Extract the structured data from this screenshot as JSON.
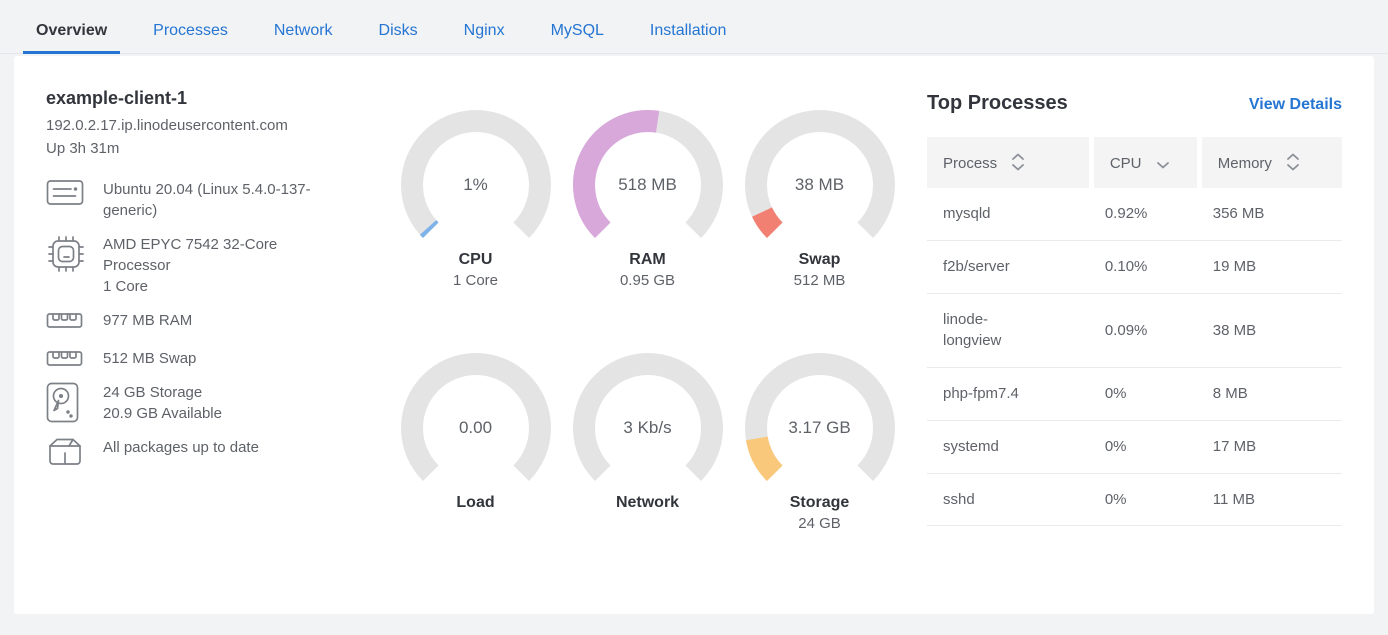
{
  "tabs": {
    "items": [
      {
        "label": "Overview",
        "active": true
      },
      {
        "label": "Processes",
        "active": false
      },
      {
        "label": "Network",
        "active": false
      },
      {
        "label": "Disks",
        "active": false
      },
      {
        "label": "Nginx",
        "active": false
      },
      {
        "label": "MySQL",
        "active": false
      },
      {
        "label": "Installation",
        "active": false
      }
    ]
  },
  "theme": {
    "link_blue": "#2575d2",
    "heading_dark": "#32363c",
    "body_gray": "#5e6268",
    "gauge_track": "#e4e4e4"
  },
  "client": {
    "name": "example-client-1",
    "hostname": "192.0.2.17.ip.linodeusercontent.com",
    "uptime": "Up 3h 31m",
    "specs": {
      "os": {
        "icon": "distro-icon",
        "text": "Ubuntu 20.04 (Linux 5.4.0-137-generic)"
      },
      "cpu": {
        "icon": "cpu-chip-icon",
        "model": "AMD EPYC 7542 32-Core Processor",
        "cores": "1 Core"
      },
      "ram": {
        "icon": "ram-stick-icon",
        "text": "977 MB RAM"
      },
      "swap": {
        "icon": "ram-stick-icon",
        "text": "512 MB Swap"
      },
      "storage": {
        "icon": "hard-disk-icon",
        "total": "24 GB Storage",
        "available": "20.9 GB Available"
      },
      "packages": {
        "icon": "package-box-icon",
        "text": "All packages up to date"
      }
    }
  },
  "gauges": [
    {
      "id": "cpu",
      "value": "1%",
      "label": "CPU",
      "sublabel": "1 Core",
      "fraction": 0.013,
      "color": "#7db3e8"
    },
    {
      "id": "ram",
      "value": "518 MB",
      "label": "RAM",
      "sublabel": "0.95 GB",
      "fraction": 0.532,
      "color": "#d8a8da"
    },
    {
      "id": "swap",
      "value": "38 MB",
      "label": "Swap",
      "sublabel": "512 MB",
      "fraction": 0.074,
      "color": "#f18072"
    },
    {
      "id": "load",
      "value": "0.00",
      "label": "Load",
      "sublabel": "",
      "fraction": 0,
      "color": "#7db3e8"
    },
    {
      "id": "network",
      "value": "3 Kb/s",
      "label": "Network",
      "sublabel": "",
      "fraction": 0,
      "color": "#7db3e8"
    },
    {
      "id": "storage",
      "value": "3.17 GB",
      "label": "Storage",
      "sublabel": "24 GB",
      "fraction": 0.132,
      "color": "#f9c87a"
    }
  ],
  "top_processes": {
    "title": "Top Processes",
    "view_details": "View Details",
    "columns": [
      {
        "label": "Process",
        "sort_icon": "sort-both-icon"
      },
      {
        "label": "CPU",
        "sort_icon": "chevron-down-icon"
      },
      {
        "label": "Memory",
        "sort_icon": "sort-both-icon"
      }
    ],
    "rows": [
      {
        "process": "mysqld",
        "cpu": "0.92%",
        "memory": "356 MB"
      },
      {
        "process": "f2b/server",
        "cpu": "0.10%",
        "memory": "19 MB"
      },
      {
        "process": "linode-longview",
        "cpu": "0.09%",
        "memory": "38 MB"
      },
      {
        "process": "php-fpm7.4",
        "cpu": "0%",
        "memory": "8 MB"
      },
      {
        "process": "systemd",
        "cpu": "0%",
        "memory": "17 MB"
      },
      {
        "process": "sshd",
        "cpu": "0%",
        "memory": "11 MB"
      }
    ]
  }
}
